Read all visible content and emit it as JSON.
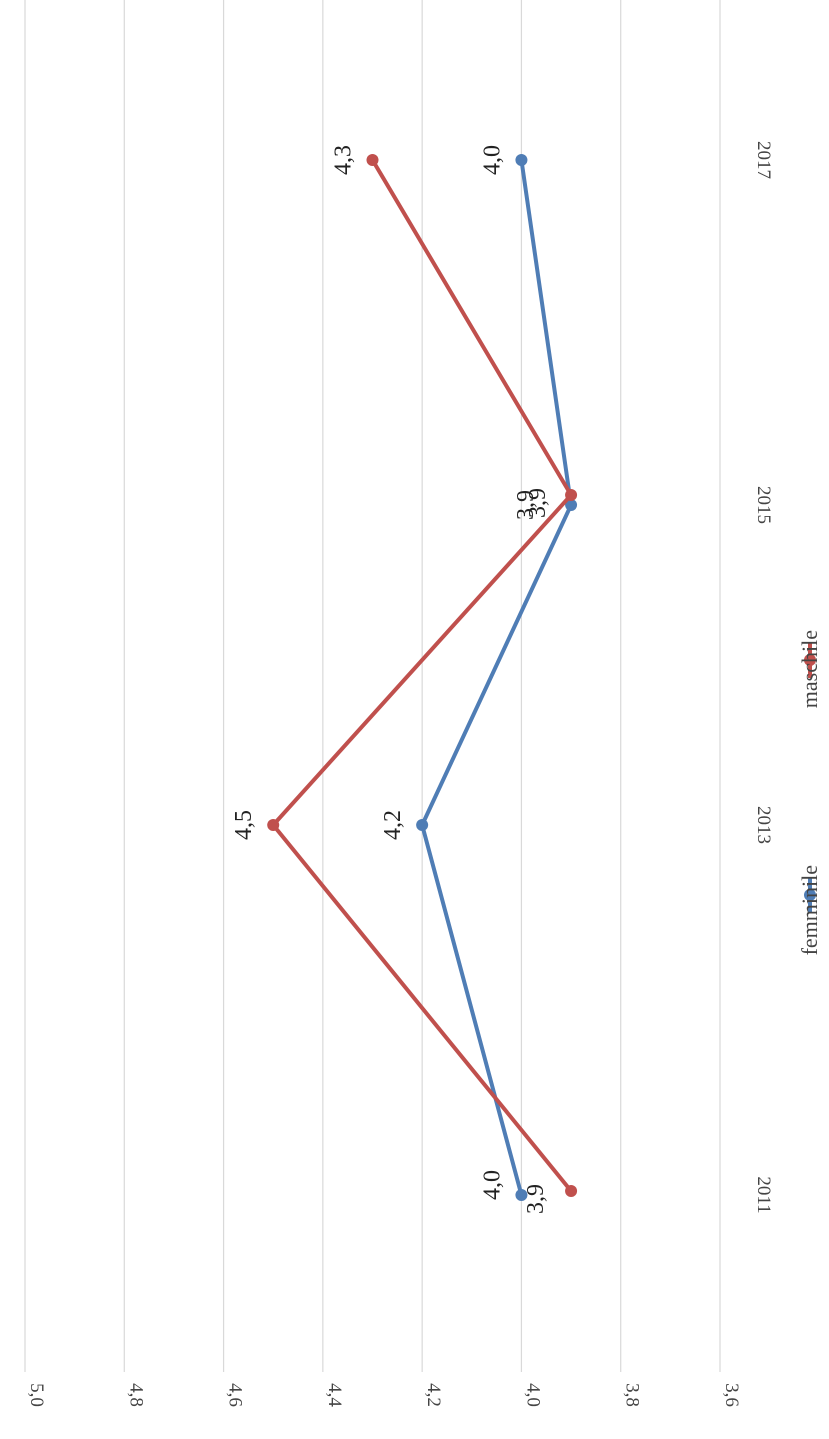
{
  "chart_data": {
    "type": "line",
    "categories": [
      "2011",
      "2013",
      "2015",
      "2017"
    ],
    "series": [
      {
        "name": "femminile",
        "values": [
          4.0,
          4.2,
          3.9,
          4.0
        ],
        "labels": [
          "4,0",
          "4,2",
          "3,9",
          "4,0"
        ],
        "color": "#4f7db5"
      },
      {
        "name": "maschile",
        "values": [
          3.9,
          4.5,
          3.9,
          4.3
        ],
        "labels": [
          "3,9",
          "4,5",
          "3,9",
          "4,3"
        ],
        "color": "#c0504d"
      }
    ],
    "y_ticks": [
      "5,0",
      "4,8",
      "4,6",
      "4,4",
      "4,2",
      "4,0",
      "3,8",
      "3,6"
    ],
    "y_tick_values": [
      5.0,
      4.8,
      4.6,
      4.4,
      4.2,
      4.0,
      3.8,
      3.6
    ],
    "ylim": [
      3.6,
      5.0
    ],
    "grid": true,
    "legend_position": "bottom",
    "orientation": "rotated-90-clockwise"
  }
}
